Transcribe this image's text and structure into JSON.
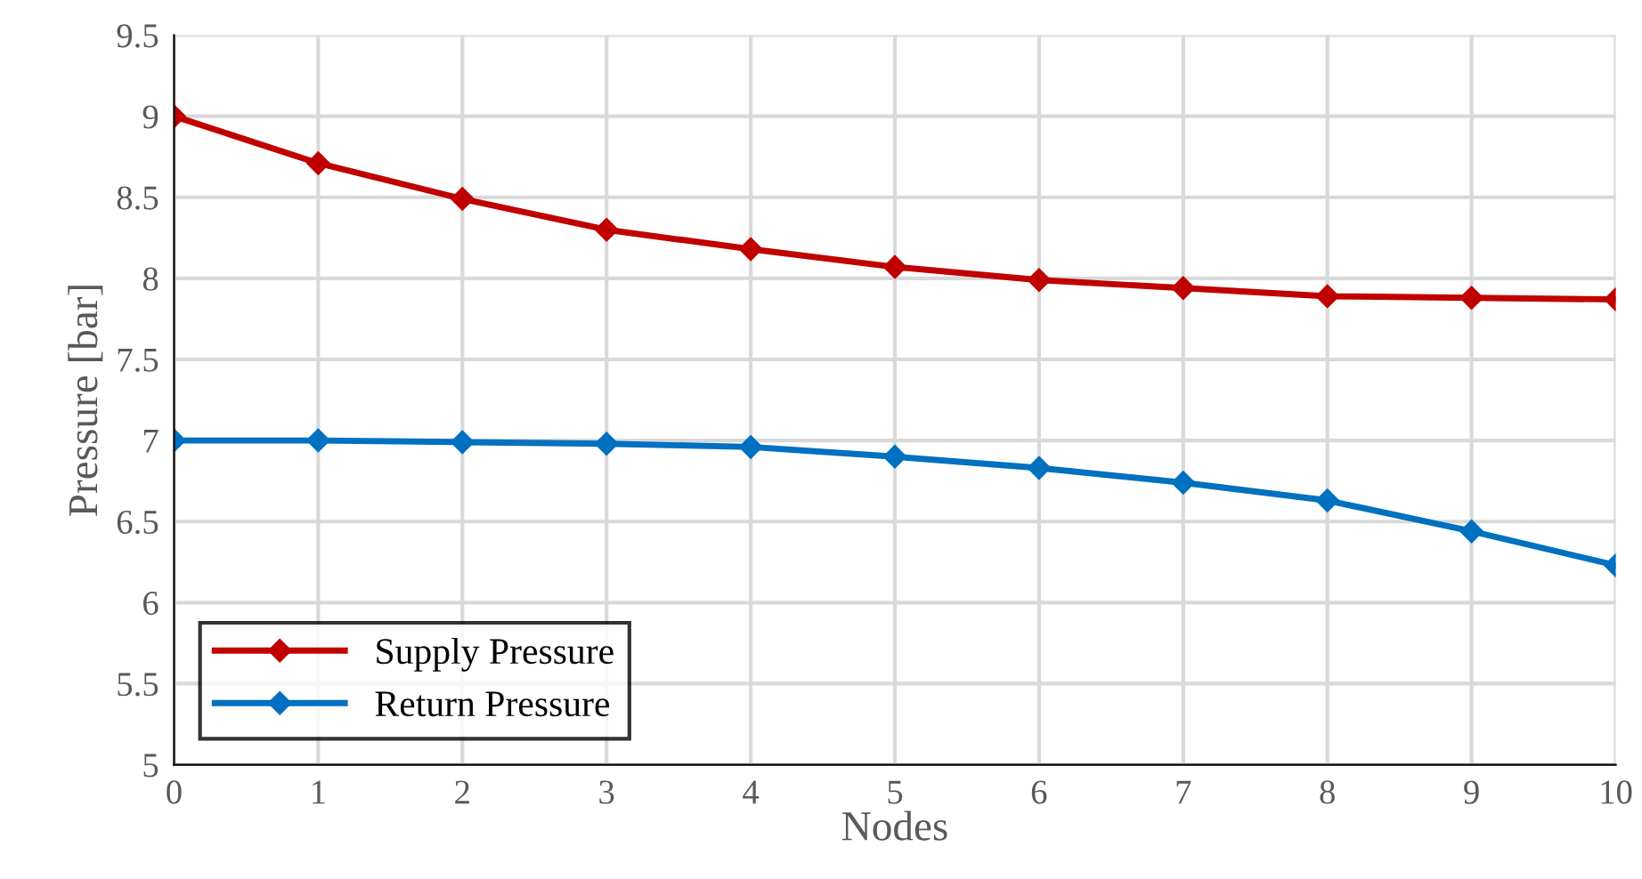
{
  "chart_data": {
    "type": "line",
    "xlabel": "Nodes",
    "ylabel": "Pressure [bar]",
    "x": [
      0,
      1,
      2,
      3,
      4,
      5,
      6,
      7,
      8,
      9,
      10
    ],
    "series": [
      {
        "name": "Supply Pressure",
        "color": "#c00000",
        "values": [
          9.0,
          8.71,
          8.49,
          8.3,
          8.18,
          8.07,
          7.99,
          7.94,
          7.89,
          7.88,
          7.87
        ]
      },
      {
        "name": "Return Pressure",
        "color": "#0070c0",
        "values": [
          7.0,
          7.0,
          6.99,
          6.98,
          6.96,
          6.9,
          6.83,
          6.74,
          6.63,
          6.44,
          6.23
        ]
      }
    ],
    "xlim": [
      0,
      10
    ],
    "xticks": [
      0,
      1,
      2,
      3,
      4,
      5,
      6,
      7,
      8,
      9,
      10
    ],
    "ylim": [
      5,
      9.5
    ],
    "yticks": [
      5,
      5.5,
      6,
      6.5,
      7,
      7.5,
      8,
      8.5,
      9,
      9.5
    ],
    "grid": true,
    "legend": "bottom left",
    "marker": "diamond",
    "line_style": "solid"
  }
}
